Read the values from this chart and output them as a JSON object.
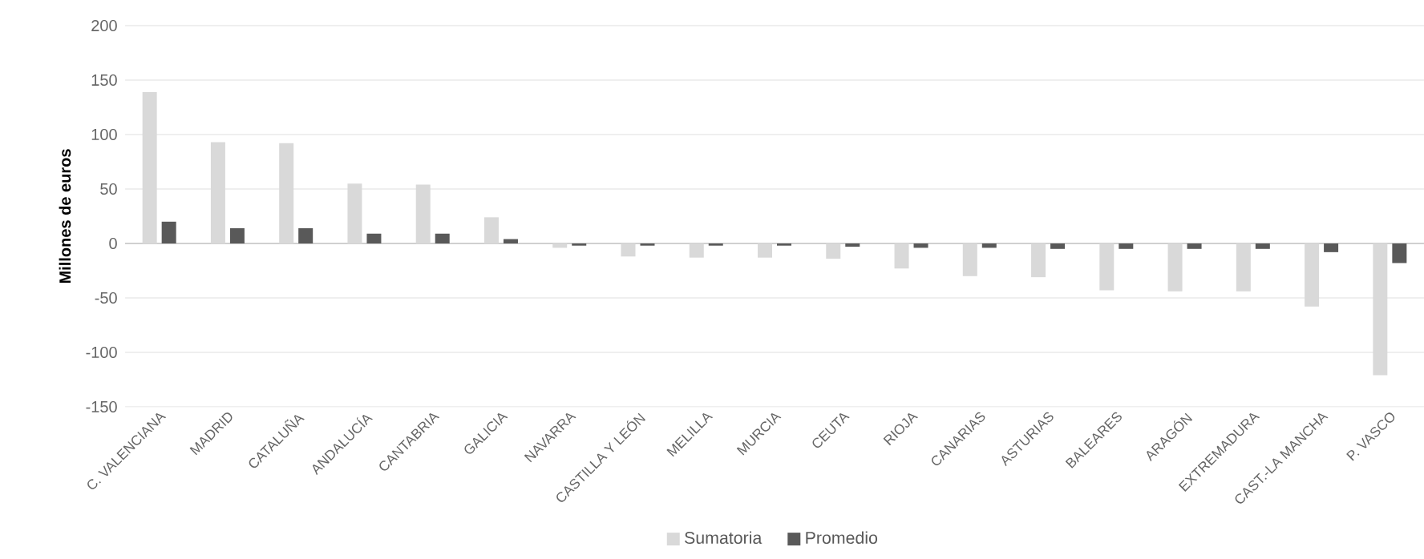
{
  "chart_data": {
    "type": "bar",
    "ylabel": "Millones de euros",
    "categories": [
      "C. VALENCIANA",
      "MADRID",
      "CATALUÑA",
      "ANDALUCÍA",
      "CANTABRIA",
      "GALICIA",
      "NAVARRA",
      "CASTILLA Y LEÓN",
      "MELILLA",
      "MURCIA",
      "CEUTA",
      "RIOJA",
      "CANARIAS",
      "ASTURIAS",
      "BALEARES",
      "ARAGÓN",
      "EXTREMADURA",
      "CAST.-LA MANCHA",
      "P. VASCO"
    ],
    "series": [
      {
        "name": "Sumatoria",
        "color": "#d9d9d9",
        "values": [
          139,
          93,
          92,
          55,
          54,
          24,
          -4,
          -12,
          -13,
          -13,
          -14,
          -23,
          -30,
          -31,
          -43,
          -44,
          -44,
          -58,
          -121
        ]
      },
      {
        "name": "Promedio",
        "color": "#595959",
        "values": [
          20,
          14,
          14,
          9,
          9,
          4,
          -2,
          -2,
          -2,
          -2,
          -3,
          -4,
          -4,
          -5,
          -5,
          -5,
          -5,
          -8,
          -18
        ]
      }
    ],
    "ylim": [
      -150,
      200
    ],
    "yticks": [
      -150,
      -100,
      -50,
      0,
      50,
      100,
      150,
      200
    ],
    "grid": "y",
    "legend": "bottom"
  }
}
